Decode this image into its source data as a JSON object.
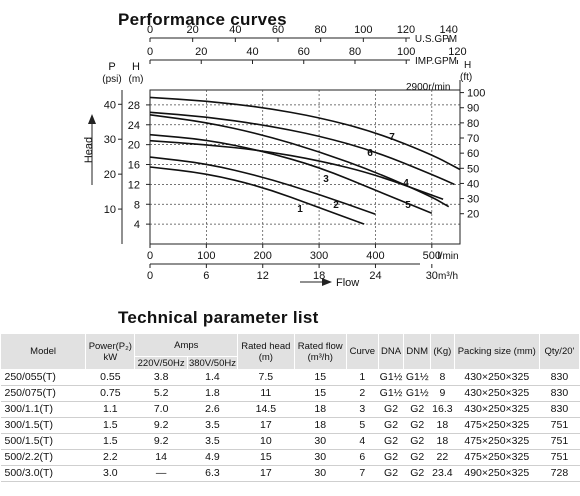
{
  "page": {
    "chart_title": "Performance curves",
    "table_title": "Technical parameter list"
  },
  "chart_data": {
    "type": "line",
    "rpm_label": "2900r/min",
    "x_primary": {
      "label": "l/min",
      "ticks": [
        "0",
        "100",
        "200",
        "300",
        "400",
        "500"
      ],
      "range": [
        0,
        550
      ]
    },
    "x_m3h": {
      "label": "m³/h",
      "ticks": [
        "0",
        "6",
        "12",
        "18",
        "24",
        "30"
      ]
    },
    "x_usgpm": {
      "label": "U.S.GPM",
      "ticks": [
        "0",
        "20",
        "40",
        "60",
        "80",
        "100",
        "120",
        "140"
      ]
    },
    "x_impgpm": {
      "label": "IMP.GPM",
      "ticks": [
        "0",
        "20",
        "40",
        "60",
        "80",
        "100",
        "120"
      ]
    },
    "y_m": {
      "label_top": "H",
      "unit": "(m)",
      "ticks": [
        "4",
        "8",
        "12",
        "16",
        "20",
        "24",
        "28"
      ],
      "range": [
        0,
        31
      ]
    },
    "y_psi": {
      "label_top": "P",
      "unit": "(psi)",
      "ticks": [
        "10",
        "20",
        "30",
        "40"
      ]
    },
    "y_ft": {
      "label_top": "H",
      "unit": "(ft)",
      "ticks": [
        "20",
        "30",
        "40",
        "50",
        "60",
        "70",
        "80",
        "90",
        "100"
      ]
    },
    "y_axis_label": "Head",
    "x_axis_label": "Flow",
    "series": [
      {
        "name": "1",
        "x": [
          0,
          100,
          200,
          300,
          380
        ],
        "y": [
          15.5,
          14.2,
          11.5,
          7.3,
          4
        ]
      },
      {
        "name": "2",
        "x": [
          0,
          100,
          200,
          300,
          400
        ],
        "y": [
          17.5,
          16.2,
          13.5,
          10,
          6
        ]
      },
      {
        "name": "3",
        "x": [
          0,
          100,
          200,
          300,
          400,
          500
        ],
        "y": [
          22,
          21,
          18.7,
          15.5,
          10.8,
          6.2
        ]
      },
      {
        "name": "4",
        "x": [
          0,
          100,
          200,
          300,
          400,
          520
        ],
        "y": [
          20.8,
          20,
          18.8,
          16.8,
          14,
          9
        ]
      },
      {
        "name": "5",
        "x": [
          0,
          100,
          200,
          300,
          400,
          500,
          530
        ],
        "y": [
          26,
          24.5,
          22,
          18.6,
          14.5,
          9.5,
          7.5
        ]
      },
      {
        "name": "6",
        "x": [
          0,
          100,
          200,
          300,
          400,
          500,
          540
        ],
        "y": [
          26.5,
          25.6,
          24,
          21.8,
          18.6,
          14,
          12
        ]
      },
      {
        "name": "7",
        "x": [
          0,
          100,
          200,
          300,
          400,
          500,
          550
        ],
        "y": [
          29.5,
          28.8,
          27.5,
          25.5,
          22.5,
          18,
          15
        ]
      }
    ]
  },
  "table": {
    "headers": {
      "model": "Model",
      "power": "Power(P₂) kW",
      "amps": "Amps",
      "amps_220": "220V/50Hz",
      "amps_380": "380V/50Hz",
      "rated_head": "Rated head (m)",
      "rated_flow": "Rated flow (m³/h)",
      "curve": "Curve",
      "dna": "DNA",
      "dnm": "DNM",
      "kg": "(Kg)",
      "packing": "Packing size (mm)",
      "qty": "Qty/20'"
    },
    "rows": [
      {
        "model": "250/055(T)",
        "power": "0.55",
        "a220": "3.8",
        "a380": "1.4",
        "head": "7.5",
        "flow": "15",
        "curve": "1",
        "dna": "G1½",
        "dnm": "G1½",
        "kg": "8",
        "pack": "430×250×325",
        "qty": "830"
      },
      {
        "model": "250/075(T)",
        "power": "0.75",
        "a220": "5.2",
        "a380": "1.8",
        "head": "11",
        "flow": "15",
        "curve": "2",
        "dna": "G1½",
        "dnm": "G1½",
        "kg": "9",
        "pack": "430×250×325",
        "qty": "830"
      },
      {
        "model": "300/1.1(T)",
        "power": "1.1",
        "a220": "7.0",
        "a380": "2.6",
        "head": "14.5",
        "flow": "18",
        "curve": "3",
        "dna": "G2",
        "dnm": "G2",
        "kg": "16.3",
        "pack": "430×250×325",
        "qty": "830"
      },
      {
        "model": "300/1.5(T)",
        "power": "1.5",
        "a220": "9.2",
        "a380": "3.5",
        "head": "17",
        "flow": "18",
        "curve": "5",
        "dna": "G2",
        "dnm": "G2",
        "kg": "18",
        "pack": "475×250×325",
        "qty": "751"
      },
      {
        "model": "500/1.5(T)",
        "power": "1.5",
        "a220": "9.2",
        "a380": "3.5",
        "head": "10",
        "flow": "30",
        "curve": "4",
        "dna": "G2",
        "dnm": "G2",
        "kg": "18",
        "pack": "475×250×325",
        "qty": "751"
      },
      {
        "model": "500/2.2(T)",
        "power": "2.2",
        "a220": "14",
        "a380": "4.9",
        "head": "15",
        "flow": "30",
        "curve": "6",
        "dna": "G2",
        "dnm": "G2",
        "kg": "22",
        "pack": "475×250×325",
        "qty": "751"
      },
      {
        "model": "500/3.0(T)",
        "power": "3.0",
        "a220": "—",
        "a380": "6.3",
        "head": "17",
        "flow": "30",
        "curve": "7",
        "dna": "G2",
        "dnm": "G2",
        "kg": "23.4",
        "pack": "490×250×325",
        "qty": "728"
      }
    ]
  }
}
